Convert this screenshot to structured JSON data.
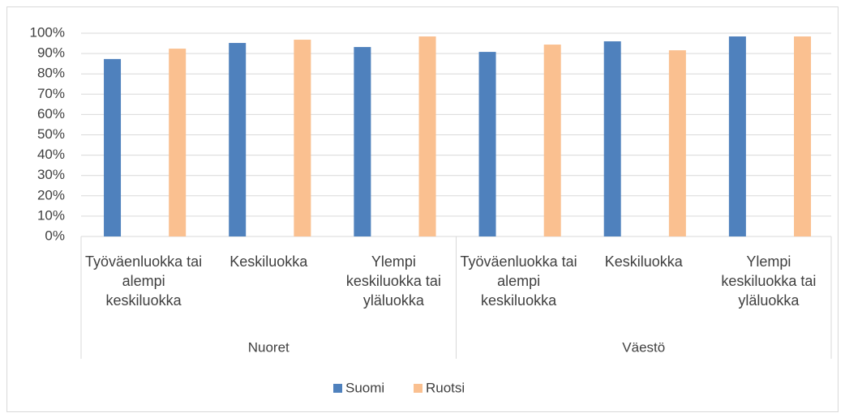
{
  "chart_data": {
    "type": "bar",
    "categories": [
      "Työväenluokka tai alempi keskiluokka",
      "Keskiluokka",
      "Ylempi keskiluokka tai yläluokka",
      "Työväenluokka tai alempi keskiluokka",
      "Keskiluokka",
      "Ylempi keskiluokka tai yläluokka"
    ],
    "groups": [
      "Nuoret",
      "Väestö"
    ],
    "series": [
      {
        "name": "Suomi",
        "color": "#4f81bd",
        "values": [
          87.3,
          95.2,
          93.2,
          90.8,
          96,
          98.4
        ]
      },
      {
        "name": "Ruotsi",
        "color": "#fac090",
        "values": [
          92.4,
          96.8,
          98.4,
          94.4,
          91.6,
          98.4
        ]
      }
    ],
    "ylim": [
      0,
      100
    ],
    "yticks": [
      {
        "value": 0,
        "label": "0%"
      },
      {
        "value": 10,
        "label": "10%"
      },
      {
        "value": 20,
        "label": "20%"
      },
      {
        "value": 30,
        "label": "30%"
      },
      {
        "value": 40,
        "label": "40%"
      },
      {
        "value": 50,
        "label": "50%"
      },
      {
        "value": 60,
        "label": "60%"
      },
      {
        "value": 70,
        "label": "70%"
      },
      {
        "value": 80,
        "label": "80%"
      },
      {
        "value": 90,
        "label": "90%"
      },
      {
        "value": 100,
        "label": "100%"
      }
    ],
    "grid": true,
    "legend": "bottom"
  }
}
